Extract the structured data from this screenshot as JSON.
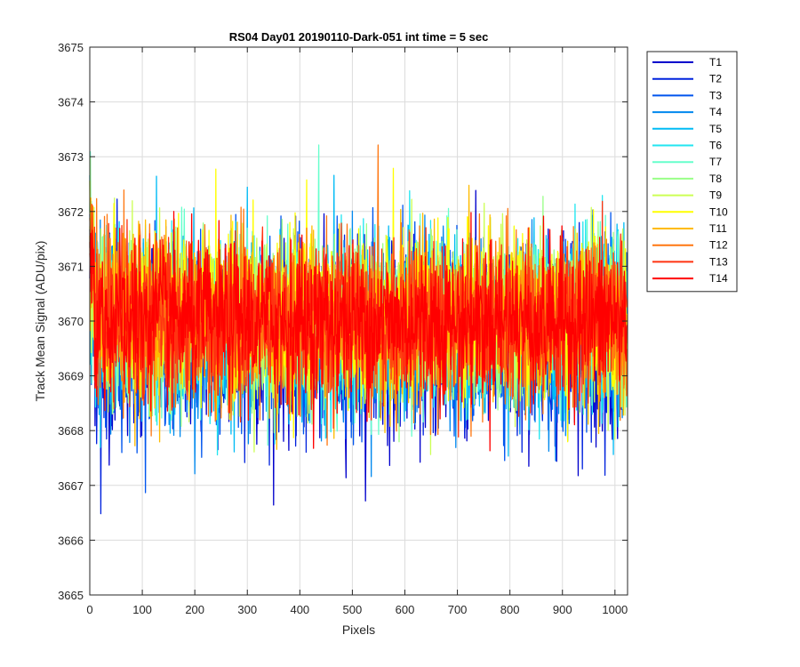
{
  "chart_data": {
    "type": "line",
    "title": "RS04 Day01 20190110-Dark-051 int time = 5 sec",
    "xlabel": "Pixels",
    "ylabel": "Track Mean Signal (ADU/pix)",
    "xlim": [
      0,
      1024
    ],
    "ylim": [
      3665,
      3675
    ],
    "xticks": [
      0,
      100,
      200,
      300,
      400,
      500,
      600,
      700,
      800,
      900,
      1000
    ],
    "yticks": [
      3665,
      3666,
      3667,
      3668,
      3669,
      3670,
      3671,
      3672,
      3673,
      3674,
      3675
    ],
    "grid": true,
    "legend_position": "outside-top-right",
    "n_points": 1024,
    "series": [
      {
        "name": "T1",
        "color": "#0000cc",
        "mean": 3669.6,
        "sd": 0.85,
        "min": 3666.0,
        "max": 3673.0
      },
      {
        "name": "T2",
        "color": "#0022dd",
        "mean": 3669.7,
        "sd": 0.8,
        "min": 3666.2,
        "max": 3673.0
      },
      {
        "name": "T3",
        "color": "#0055ee",
        "mean": 3669.8,
        "sd": 0.78,
        "min": 3666.5,
        "max": 3673.0
      },
      {
        "name": "T4",
        "color": "#0088ee",
        "mean": 3669.8,
        "sd": 0.78,
        "min": 3666.8,
        "max": 3673.6
      },
      {
        "name": "T5",
        "color": "#00bbf5",
        "mean": 3669.9,
        "sd": 0.77,
        "min": 3666.6,
        "max": 3673.6
      },
      {
        "name": "T6",
        "color": "#22e6f0",
        "mean": 3669.9,
        "sd": 0.75,
        "min": 3666.7,
        "max": 3673.5
      },
      {
        "name": "T7",
        "color": "#66ffcc",
        "mean": 3670.0,
        "sd": 0.75,
        "min": 3667.0,
        "max": 3673.5
      },
      {
        "name": "T8",
        "color": "#99ff88",
        "mean": 3670.0,
        "sd": 0.75,
        "min": 3667.0,
        "max": 3674.0
      },
      {
        "name": "T9",
        "color": "#ccff55",
        "mean": 3670.1,
        "sd": 0.75,
        "min": 3667.0,
        "max": 3673.6
      },
      {
        "name": "T10",
        "color": "#ffff00",
        "mean": 3670.1,
        "sd": 0.75,
        "min": 3667.0,
        "max": 3673.4
      },
      {
        "name": "T11",
        "color": "#ffbb00",
        "mean": 3670.0,
        "sd": 0.75,
        "min": 3667.0,
        "max": 3673.2
      },
      {
        "name": "T12",
        "color": "#ff7711",
        "mean": 3670.0,
        "sd": 0.75,
        "min": 3665.9,
        "max": 3673.3
      },
      {
        "name": "T13",
        "color": "#ff3311",
        "mean": 3670.0,
        "sd": 0.72,
        "min": 3665.9,
        "max": 3673.9
      },
      {
        "name": "T14",
        "color": "#ff0000",
        "mean": 3670.0,
        "sd": 0.7,
        "min": 3667.5,
        "max": 3673.8
      }
    ]
  }
}
